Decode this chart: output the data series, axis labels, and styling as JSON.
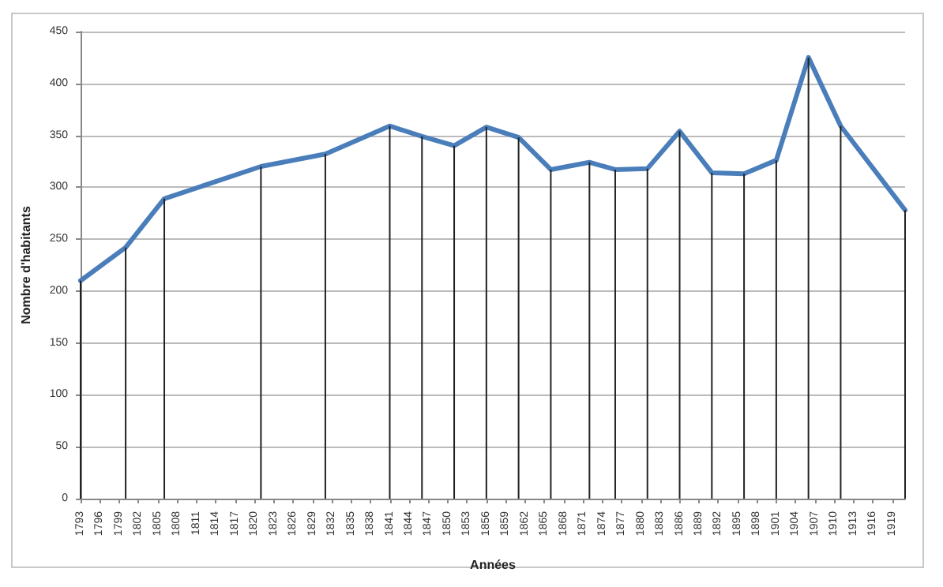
{
  "chart_data": {
    "type": "line",
    "xlabel": "Années",
    "ylabel": "Nombre d'habitants",
    "x": [
      1793,
      1800,
      1806,
      1821,
      1831,
      1841,
      1846,
      1851,
      1856,
      1861,
      1866,
      1872,
      1876,
      1881,
      1886,
      1891,
      1896,
      1901,
      1906,
      1911,
      1921
    ],
    "series": [
      {
        "type": "bar",
        "color": "#222222",
        "values": [
          210,
          242,
          289,
          320,
          332,
          359,
          349,
          340,
          358,
          348,
          317,
          324,
          317,
          318,
          354,
          314,
          313,
          326,
          425,
          359,
          278
        ]
      },
      {
        "color": "#4a7ebb",
        "values": [
          210,
          242,
          289,
          320,
          332,
          359,
          349,
          340,
          358,
          348,
          317,
          324,
          317,
          318,
          354,
          314,
          313,
          326,
          425,
          359,
          278
        ]
      }
    ],
    "xlim": [
      1793,
      1921
    ],
    "xticks": [
      1793,
      1796,
      1799,
      1802,
      1805,
      1808,
      1811,
      1814,
      1817,
      1820,
      1823,
      1826,
      1829,
      1832,
      1835,
      1838,
      1841,
      1844,
      1847,
      1850,
      1853,
      1856,
      1859,
      1862,
      1865,
      1868,
      1871,
      1874,
      1877,
      1880,
      1883,
      1886,
      1889,
      1892,
      1895,
      1898,
      1901,
      1904,
      1907,
      1910,
      1913,
      1916,
      1919
    ],
    "ylim": [
      0,
      450
    ],
    "yticks": [
      0,
      50,
      100,
      150,
      200,
      250,
      300,
      350,
      400,
      450
    ],
    "grid": "y",
    "marker": "none",
    "line_style": "solid"
  }
}
